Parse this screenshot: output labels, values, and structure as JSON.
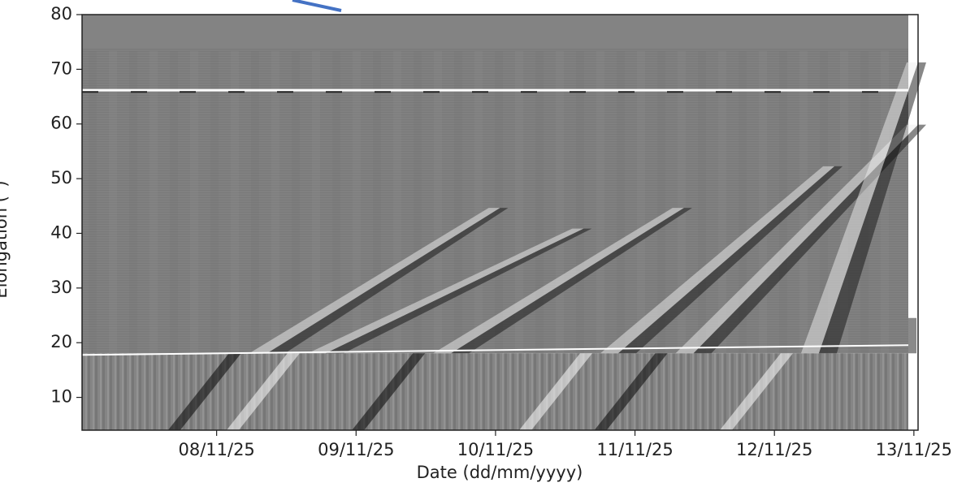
{
  "chart_data": {
    "type": "image",
    "x_label": "Date (dd/mm/yyyy)",
    "y_label": "Elongation (°)",
    "xlim": [
      7.035,
      13.03
    ],
    "xticks": [
      {
        "value": 8,
        "label": "08/11/25"
      },
      {
        "value": 9,
        "label": "09/11/25"
      },
      {
        "value": 10,
        "label": "10/11/25"
      },
      {
        "value": 11,
        "label": "11/11/25"
      },
      {
        "value": 12,
        "label": "12/11/25"
      },
      {
        "value": 13,
        "label": "13/11/25"
      }
    ],
    "ylim": [
      4,
      80
    ],
    "yticks": [
      10,
      20,
      30,
      40,
      50,
      60,
      70,
      80
    ]
  }
}
